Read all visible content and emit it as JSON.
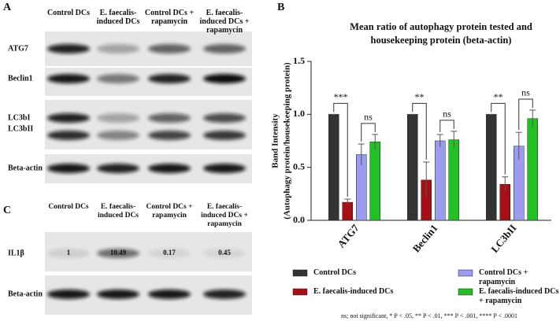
{
  "panel_labels": [
    "A",
    "B",
    "C"
  ],
  "panel_a": {
    "columns": [
      "Control DCs",
      "E. faecalis-induced DCs",
      "Control DCs + rapamycin",
      "E. faecalis-induced DCs + rapamycin"
    ],
    "rows": [
      "ATG7",
      "Beclin1",
      "LC3bI",
      "LC3bII",
      "Beta-actin"
    ]
  },
  "panel_c": {
    "columns": [
      "Control DCs",
      "E. faecalis-induced DCs",
      "Control DCs + rapamycin",
      "E. faecalis-induced DCs + rapamycin"
    ],
    "rows": [
      "IL1β",
      "Beta-actin"
    ],
    "il1b_values": [
      1,
      10.49,
      0.17,
      0.45
    ]
  },
  "chart_data": {
    "type": "bar",
    "title": "Mean ratio of autophagy protein tested and housekeeping protein (beta-actin)",
    "y_label": [
      "Band Intensity",
      "(Autophagy protein/housekeeping protein)"
    ],
    "categories": [
      "ATG7",
      "Beclin1",
      "LC3bII"
    ],
    "series": [
      {
        "name": "Control DCs",
        "color": "#333333",
        "values": [
          1,
          1,
          1
        ],
        "errors": [
          0,
          0,
          0
        ]
      },
      {
        "name": "E. faecalis-induced DCs",
        "color": "#a50f15",
        "values": [
          0.17,
          0.38,
          0.34
        ],
        "errors": [
          0.03,
          0.17,
          0.07
        ]
      },
      {
        "name": "Control DCs + rapamycin",
        "color": "#9b9bf0",
        "values": [
          0.62,
          0.75,
          0.7
        ],
        "errors": [
          0.1,
          0.06,
          0.13
        ]
      },
      {
        "name": "E. faecalis-induced DCs + rapamycin",
        "color": "#22c022",
        "values": [
          0.74,
          0.76,
          0.96
        ],
        "errors": [
          0.07,
          0.08,
          0.08
        ]
      }
    ],
    "annotations": [
      "***",
      "ns",
      "**",
      "ns",
      "**",
      "ns"
    ],
    "ylim": [
      0,
      1.5
    ],
    "yticks": [
      {
        "value": 0,
        "label": "0.0"
      },
      {
        "value": 0.5,
        "label": "0.5"
      },
      {
        "value": 1,
        "label": "1.0"
      },
      {
        "value": 1.5,
        "label": "1.5"
      }
    ]
  },
  "footnote": "ns; not significant, * P < .05, ** P < .01, *** P < .001, **** P < .0001"
}
